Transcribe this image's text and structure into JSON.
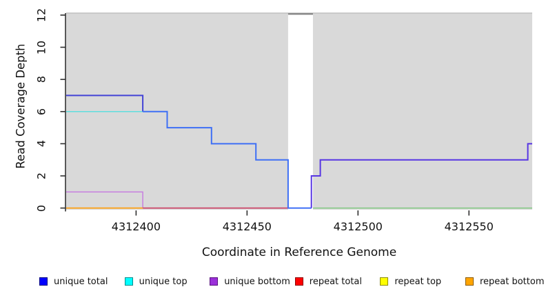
{
  "page": {
    "background": "#ffffff"
  },
  "chart_data": {
    "type": "line",
    "title": "",
    "xlabel": "Coordinate in Reference Genome",
    "ylabel": "Read Coverage Depth",
    "xlim": [
      4312368.5,
      4312578.5
    ],
    "ylim": [
      0,
      12
    ],
    "grid": false,
    "plot_bg_color": "#d9d9d9",
    "plot_bg_top_edge_color": "#bfbfbf",
    "axis_color": "#2e2e2e",
    "gap_region": {
      "x0": 4312468.5,
      "x1": 4312479.7,
      "fill": "#ffffff"
    },
    "offscale_marker": {
      "x0": 4312468.5,
      "x1": 4312479.7,
      "value": 12.07,
      "color": "#848484",
      "width": 2.2
    },
    "x_ticks": [
      {
        "value": 4312400,
        "label": "4312400"
      },
      {
        "value": 4312450,
        "label": "4312450"
      },
      {
        "value": 4312500,
        "label": "4312500"
      },
      {
        "value": 4312550,
        "label": "4312550"
      }
    ],
    "y_ticks": [
      {
        "value": 0,
        "label": "0"
      },
      {
        "value": 2,
        "label": "2"
      },
      {
        "value": 4,
        "label": "4"
      },
      {
        "value": 6,
        "label": "6"
      },
      {
        "value": 8,
        "label": "8"
      },
      {
        "value": 10,
        "label": "10"
      },
      {
        "value": 12,
        "label": "12"
      }
    ],
    "series": [
      {
        "name": "unique total",
        "color": "#0000ff",
        "steps": [
          [
            4312368.5,
            7
          ],
          [
            4312403,
            6
          ],
          [
            4312414,
            5
          ],
          [
            4312434,
            4
          ],
          [
            4312454,
            3
          ],
          [
            4312468.5,
            0
          ],
          [
            4312479,
            2
          ],
          [
            4312483,
            3
          ],
          [
            4312576.5,
            4
          ]
        ]
      },
      {
        "name": "unique top",
        "color": "#00ffff",
        "steps": [
          [
            4312368.5,
            6
          ],
          [
            4312403,
            6
          ],
          [
            4312414,
            5
          ],
          [
            4312434,
            4
          ],
          [
            4312454,
            3
          ],
          [
            4312468.5,
            0
          ]
        ]
      },
      {
        "name": "unique bottom",
        "color": "#9b30d9",
        "steps": [
          [
            4312368.5,
            1
          ],
          [
            4312403,
            0
          ],
          [
            4312479,
            2
          ],
          [
            4312483,
            3
          ],
          [
            4312576.5,
            4
          ]
        ]
      },
      {
        "name": "repeat total",
        "color": "#ff0000",
        "steps": [
          [
            4312368.5,
            0
          ]
        ]
      },
      {
        "name": "repeat top",
        "color": "#ffff00",
        "steps": [
          [
            4312368.5,
            0
          ]
        ]
      },
      {
        "name": "repeat bottom",
        "color": "#ffa500",
        "steps": [
          [
            4312368.5,
            0
          ]
        ]
      }
    ],
    "visible_segments": [
      {
        "name": "unique-top-line",
        "color": "#5fdede",
        "lw": 1.5,
        "pts": [
          [
            4312368.5,
            6
          ],
          [
            4312403,
            6
          ]
        ]
      },
      {
        "name": "unique-bottom-line",
        "color": "#c77fe0",
        "lw": 1.5,
        "pts": [
          [
            4312368.5,
            1
          ],
          [
            4312403,
            1
          ],
          [
            4312403,
            0
          ]
        ]
      },
      {
        "name": "repeat-bottom-baseline",
        "color": "#ffa011",
        "lw": 1.8,
        "pts": [
          [
            4312368.5,
            0
          ],
          [
            4312403,
            0
          ]
        ]
      },
      {
        "name": "repeat-total-baseline",
        "color": "#cc4466",
        "lw": 1.8,
        "pts": [
          [
            4312403,
            0
          ],
          [
            4312468.5,
            0
          ]
        ]
      },
      {
        "name": "unique-total-high",
        "color": "#4343d6",
        "lw": 2,
        "pts": [
          [
            4312368.5,
            7
          ],
          [
            4312403,
            7
          ],
          [
            4312403,
            6
          ]
        ]
      },
      {
        "name": "unique-total-mid",
        "color": "#3e6ff5",
        "lw": 2,
        "pts": [
          [
            4312403,
            6
          ],
          [
            4312414,
            6
          ],
          [
            4312414,
            5
          ],
          [
            4312434,
            5
          ],
          [
            4312434,
            4
          ],
          [
            4312454,
            4
          ],
          [
            4312454,
            3
          ],
          [
            4312468.5,
            3
          ],
          [
            4312468.5,
            0
          ],
          [
            4312479,
            0
          ]
        ]
      },
      {
        "name": "unique-total-low",
        "color": "#5736e3",
        "lw": 2,
        "pts": [
          [
            4312479,
            0
          ],
          [
            4312479,
            2
          ],
          [
            4312483,
            2
          ],
          [
            4312483,
            3
          ],
          [
            4312576.5,
            3
          ],
          [
            4312576.5,
            4
          ],
          [
            4312578.5,
            4
          ]
        ]
      },
      {
        "name": "top-strand-zero-baseline",
        "color": "#7fc87f",
        "lw": 1.5,
        "pts": [
          [
            4312479.7,
            0
          ],
          [
            4312578.5,
            0
          ]
        ]
      }
    ]
  },
  "legend": {
    "items": [
      {
        "label": "unique total",
        "fill": "#0000ff",
        "border": "#000080"
      },
      {
        "label": "unique top",
        "fill": "#00ffff",
        "border": "#008b8b"
      },
      {
        "label": "unique bottom",
        "fill": "#9b30d9",
        "border": "#5a1280"
      },
      {
        "label": "repeat total",
        "fill": "#ff0000",
        "border": "#8b0000"
      },
      {
        "label": "repeat top",
        "fill": "#ffff00",
        "border": "#8b8b00"
      },
      {
        "label": "repeat bottom",
        "fill": "#ffa500",
        "border": "#8b5a00"
      }
    ]
  }
}
